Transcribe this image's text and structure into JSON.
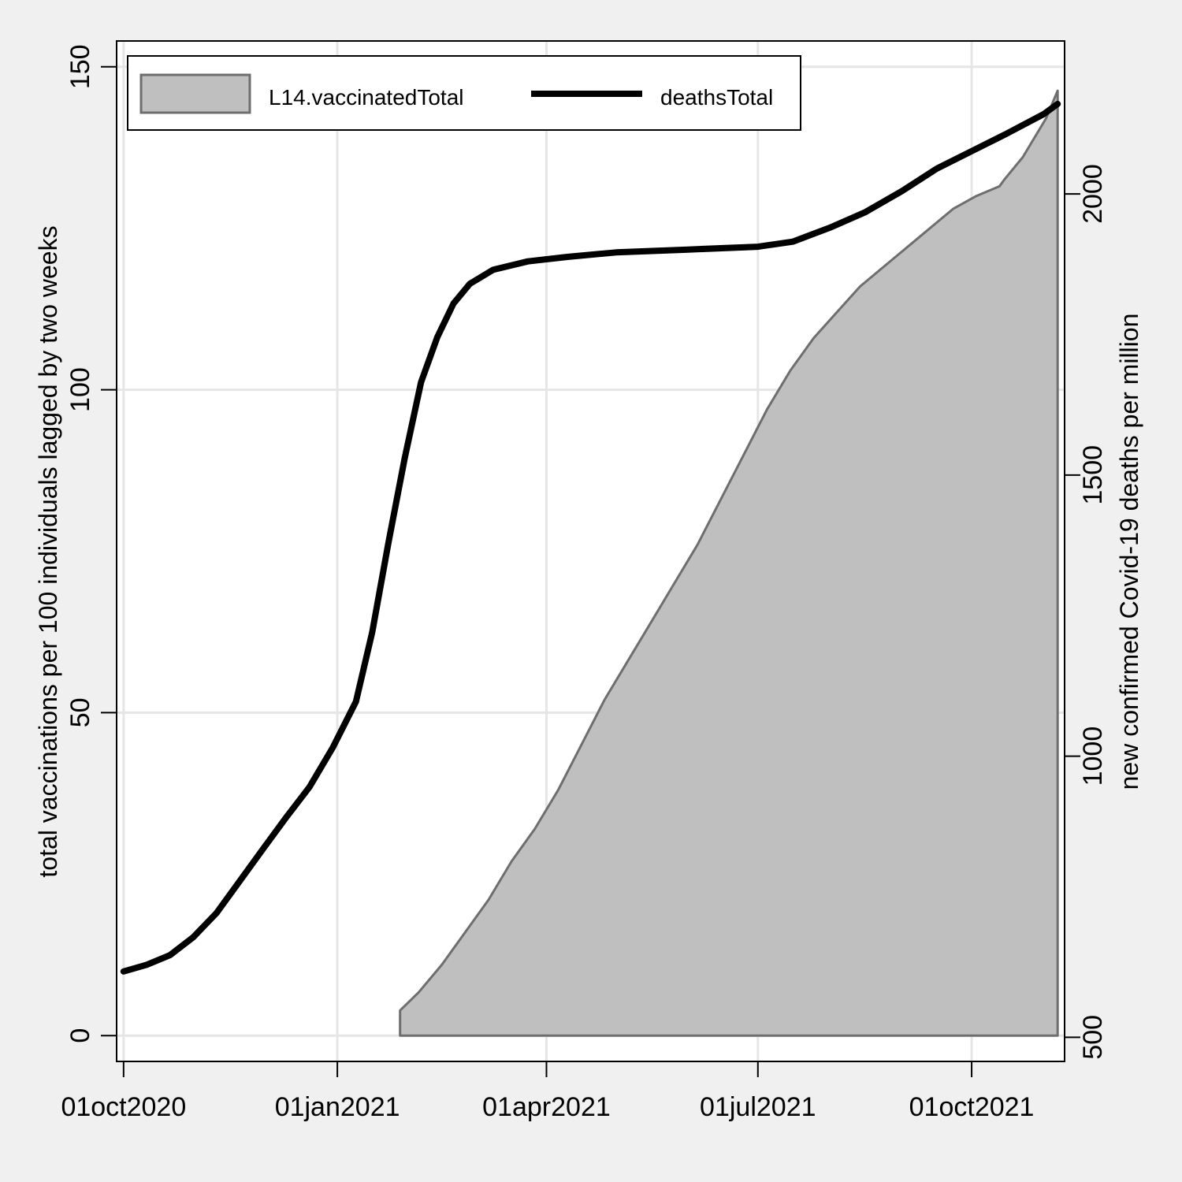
{
  "chart_data": {
    "type": "area",
    "x_format": "date",
    "x_ticks": [
      "2020-10-01",
      "2021-01-01",
      "2021-04-01",
      "2021-07-01",
      "2021-10-01"
    ],
    "x_tick_labels": [
      "01oct2020",
      "01jan2021",
      "01apr2021",
      "01jul2021",
      "01oct2021"
    ],
    "xlim": [
      "2020-09-28",
      "2021-11-10"
    ],
    "ylabel_left": "total vaccinations per 100 individuals lagged by two weeks",
    "ylabel_right": "new confirmed Covid-19 deaths per million",
    "ylim_left": [
      -4,
      154
    ],
    "ylim_right": [
      457,
      2272
    ],
    "y_ticks_left": [
      0,
      50,
      100,
      150
    ],
    "y_ticks_right": [
      500,
      1000,
      1500,
      2000
    ],
    "grid": true,
    "legend_position": "top",
    "colors": {
      "area_fill": "#bfbfbf",
      "area_edge": "#6e6e6e",
      "line": "#000000",
      "background": "#f0f0f0",
      "plot_background": "#ffffff",
      "grid": "#e6e6e6"
    },
    "series": [
      {
        "name": "L14.vaccinatedTotal",
        "type": "area",
        "axis": "left",
        "points": [
          [
            "2021-01-28",
            0
          ],
          [
            "2021-01-28",
            3.9
          ],
          [
            "2021-02-05",
            6.7
          ],
          [
            "2021-02-15",
            11
          ],
          [
            "2021-02-25",
            16
          ],
          [
            "2021-03-07",
            21
          ],
          [
            "2021-03-17",
            27
          ],
          [
            "2021-03-27",
            32
          ],
          [
            "2021-04-06",
            38
          ],
          [
            "2021-04-16",
            45
          ],
          [
            "2021-04-26",
            52
          ],
          [
            "2021-05-06",
            58
          ],
          [
            "2021-05-16",
            64
          ],
          [
            "2021-05-26",
            70
          ],
          [
            "2021-06-05",
            76
          ],
          [
            "2021-06-15",
            83
          ],
          [
            "2021-06-25",
            90
          ],
          [
            "2021-07-05",
            97
          ],
          [
            "2021-07-15",
            103
          ],
          [
            "2021-07-25",
            108
          ],
          [
            "2021-08-04",
            112
          ],
          [
            "2021-08-14",
            116
          ],
          [
            "2021-08-24",
            119
          ],
          [
            "2021-09-03",
            122
          ],
          [
            "2021-09-13",
            125
          ],
          [
            "2021-09-23",
            128
          ],
          [
            "2021-10-03",
            130
          ],
          [
            "2021-10-13",
            131.5
          ],
          [
            "2021-10-15",
            132.5
          ],
          [
            "2021-10-23",
            136
          ],
          [
            "2021-11-02",
            142
          ],
          [
            "2021-11-07",
            146.3
          ],
          [
            "2021-11-07",
            0
          ]
        ]
      },
      {
        "name": "deathsTotal",
        "type": "line",
        "axis": "right",
        "points": [
          [
            "2020-10-01",
            617
          ],
          [
            "2020-10-11",
            629
          ],
          [
            "2020-10-21",
            646
          ],
          [
            "2020-10-31",
            678
          ],
          [
            "2020-11-10",
            721
          ],
          [
            "2020-11-20",
            778
          ],
          [
            "2020-11-30",
            835
          ],
          [
            "2020-12-10",
            891
          ],
          [
            "2020-12-20",
            945
          ],
          [
            "2020-12-30",
            1015
          ],
          [
            "2021-01-09",
            1097
          ],
          [
            "2021-01-16",
            1220
          ],
          [
            "2021-01-23",
            1380
          ],
          [
            "2021-01-30",
            1530
          ],
          [
            "2021-02-06",
            1665
          ],
          [
            "2021-02-13",
            1745
          ],
          [
            "2021-02-20",
            1805
          ],
          [
            "2021-02-27",
            1840
          ],
          [
            "2021-03-09",
            1865
          ],
          [
            "2021-03-24",
            1880
          ],
          [
            "2021-04-10",
            1888
          ],
          [
            "2021-05-01",
            1896
          ],
          [
            "2021-06-01",
            1901
          ],
          [
            "2021-07-01",
            1906
          ],
          [
            "2021-07-16",
            1915
          ],
          [
            "2021-08-01",
            1940
          ],
          [
            "2021-08-16",
            1967
          ],
          [
            "2021-09-01",
            2005
          ],
          [
            "2021-09-16",
            2045
          ],
          [
            "2021-10-01",
            2076
          ],
          [
            "2021-10-16",
            2107
          ],
          [
            "2021-11-01",
            2142
          ],
          [
            "2021-11-07",
            2160
          ]
        ]
      }
    ]
  }
}
